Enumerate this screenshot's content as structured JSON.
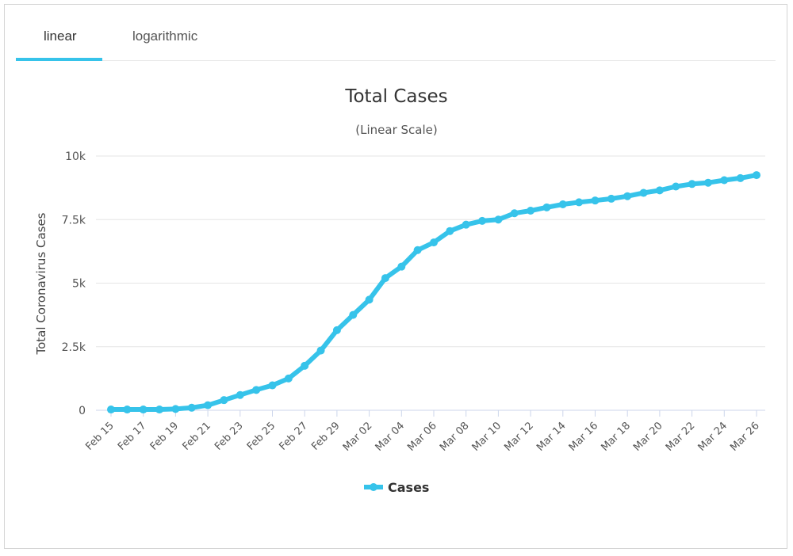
{
  "tabs": [
    {
      "label": "linear",
      "active": true
    },
    {
      "label": "logarithmic",
      "active": false
    }
  ],
  "colors": {
    "accent": "#36c3ea",
    "series": "#36c3ea",
    "grid": "#e6e6e6"
  },
  "chart_data": {
    "type": "line",
    "title": "Total Cases",
    "subtitle": "(Linear Scale)",
    "ylabel": "Total Coronavirus Cases",
    "xlabel": "",
    "ylim": [
      0,
      10000
    ],
    "yticks": [
      0,
      2500,
      5000,
      7500,
      10000
    ],
    "ytick_labels": [
      "0",
      "2.5k",
      "5k",
      "7.5k",
      "10k"
    ],
    "grid": true,
    "legend": "bottom-center",
    "x": [
      "Feb 15",
      "Feb 16",
      "Feb 17",
      "Feb 18",
      "Feb 19",
      "Feb 20",
      "Feb 21",
      "Feb 22",
      "Feb 23",
      "Feb 24",
      "Feb 25",
      "Feb 26",
      "Feb 27",
      "Feb 28",
      "Feb 29",
      "Mar 01",
      "Mar 02",
      "Mar 03",
      "Mar 04",
      "Mar 05",
      "Mar 06",
      "Mar 07",
      "Mar 08",
      "Mar 09",
      "Mar 10",
      "Mar 11",
      "Mar 12",
      "Mar 13",
      "Mar 14",
      "Mar 15",
      "Mar 16",
      "Mar 17",
      "Mar 18",
      "Mar 19",
      "Mar 20",
      "Mar 21",
      "Mar 22",
      "Mar 23",
      "Mar 24",
      "Mar 25",
      "Mar 26"
    ],
    "xtick_labels": [
      "Feb 15",
      "Feb 17",
      "Feb 19",
      "Feb 21",
      "Feb 23",
      "Feb 25",
      "Feb 27",
      "Feb 29",
      "Mar 02",
      "Mar 04",
      "Mar 06",
      "Mar 08",
      "Mar 10",
      "Mar 12",
      "Mar 14",
      "Mar 16",
      "Mar 18",
      "Mar 20",
      "Mar 22",
      "Mar 24",
      "Mar 26"
    ],
    "series": [
      {
        "name": "Cases",
        "values": [
          30,
          30,
          30,
          30,
          50,
          100,
          200,
          400,
          600,
          800,
          980,
          1250,
          1750,
          2350,
          3150,
          3750,
          4350,
          5200,
          5650,
          6300,
          6600,
          7050,
          7300,
          7450,
          7500,
          7750,
          7850,
          7980,
          8100,
          8180,
          8250,
          8320,
          8420,
          8550,
          8650,
          8800,
          8900,
          8950,
          9050,
          9130,
          9250
        ]
      }
    ]
  }
}
